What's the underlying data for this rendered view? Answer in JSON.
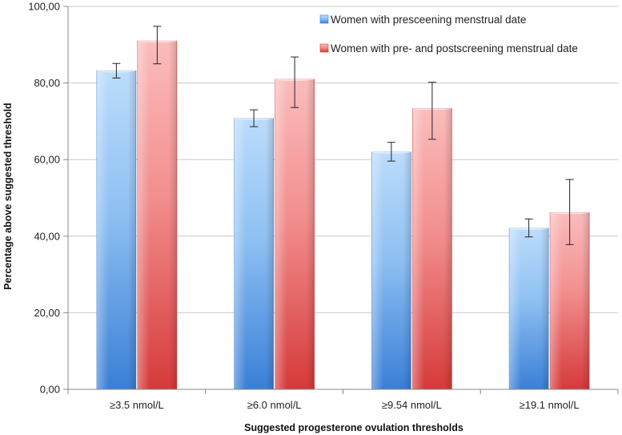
{
  "chart_data": {
    "type": "bar",
    "title": "",
    "xlabel": "Suggested progesterone ovulation thresholds",
    "ylabel": "Percentage above suggested threshold",
    "ylim": [
      0,
      100
    ],
    "yticks": [
      "0,00",
      "20,00",
      "40,00",
      "60,00",
      "80,00",
      "100,00"
    ],
    "ytick_values": [
      0,
      20,
      40,
      60,
      80,
      100
    ],
    "grid": true,
    "legend_position": "top-right",
    "categories": [
      "≥3.5 nmol/L",
      "≥6.0 nmol/L",
      "≥9.54 nmol/L",
      "≥19.1 nmol/L"
    ],
    "series": [
      {
        "name": "Women with presceening menstrual date",
        "color": "#5b9bd5",
        "values": [
          83.2,
          70.8,
          62.0,
          42.1
        ],
        "err_low": [
          81.3,
          68.6,
          59.6,
          39.8
        ],
        "err_high": [
          85.1,
          73.0,
          64.5,
          44.5
        ]
      },
      {
        "name": "Women with pre- and postscreening menstrual date",
        "color": "#e06666",
        "values": [
          91.0,
          81.0,
          73.4,
          46.2
        ],
        "err_low": [
          85.0,
          73.6,
          65.3,
          37.8
        ],
        "err_high": [
          94.8,
          86.8,
          80.2,
          54.8
        ]
      }
    ]
  }
}
